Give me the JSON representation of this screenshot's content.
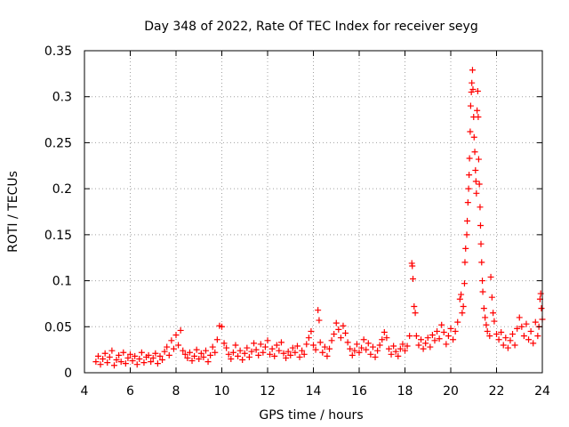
{
  "chart_data": {
    "type": "scatter",
    "title": "Day 348 of 2022, Rate Of TEC Index for receiver seyg",
    "xlabel": "GPS time / hours",
    "ylabel": "ROTI / TECUs",
    "xlim": [
      4,
      24
    ],
    "ylim": [
      0,
      0.35
    ],
    "x_ticks": [
      4,
      6,
      8,
      10,
      12,
      14,
      16,
      18,
      20,
      22,
      24
    ],
    "y_ticks": [
      0,
      0.05,
      0.1,
      0.15,
      0.2,
      0.25,
      0.3,
      0.35
    ],
    "x_tick_labels": [
      "4",
      "6",
      "8",
      "10",
      "12",
      "14",
      "16",
      "18",
      "20",
      "22",
      "24"
    ],
    "y_tick_labels": [
      "0",
      "0.05",
      "0.1",
      "0.15",
      "0.2",
      "0.25",
      "0.3",
      "0.35"
    ],
    "grid": true,
    "marker": "+",
    "color": "#ff0000",
    "series": [
      {
        "name": "ROTI",
        "points": [
          [
            4.5,
            0.012
          ],
          [
            4.6,
            0.018
          ],
          [
            4.7,
            0.009
          ],
          [
            4.8,
            0.015
          ],
          [
            4.9,
            0.021
          ],
          [
            5.0,
            0.011
          ],
          [
            5.1,
            0.017
          ],
          [
            5.2,
            0.024
          ],
          [
            5.3,
            0.008
          ],
          [
            5.4,
            0.014
          ],
          [
            5.5,
            0.019
          ],
          [
            5.6,
            0.012
          ],
          [
            5.7,
            0.022
          ],
          [
            5.8,
            0.01
          ],
          [
            5.9,
            0.016
          ],
          [
            6.0,
            0.02
          ],
          [
            6.1,
            0.013
          ],
          [
            6.2,
            0.018
          ],
          [
            6.3,
            0.009
          ],
          [
            6.4,
            0.015
          ],
          [
            6.5,
            0.022
          ],
          [
            6.6,
            0.011
          ],
          [
            6.7,
            0.017
          ],
          [
            6.8,
            0.019
          ],
          [
            6.9,
            0.012
          ],
          [
            7.0,
            0.016
          ],
          [
            7.1,
            0.021
          ],
          [
            7.2,
            0.01
          ],
          [
            7.3,
            0.018
          ],
          [
            7.4,
            0.014
          ],
          [
            7.5,
            0.023
          ],
          [
            7.6,
            0.028
          ],
          [
            7.7,
            0.019
          ],
          [
            7.8,
            0.035
          ],
          [
            7.9,
            0.026
          ],
          [
            8.0,
            0.041
          ],
          [
            8.1,
            0.03
          ],
          [
            8.2,
            0.046
          ],
          [
            8.3,
            0.024
          ],
          [
            8.4,
            0.02
          ],
          [
            8.5,
            0.016
          ],
          [
            8.6,
            0.022
          ],
          [
            8.7,
            0.013
          ],
          [
            8.8,
            0.018
          ],
          [
            8.9,
            0.025
          ],
          [
            9.0,
            0.015
          ],
          [
            9.1,
            0.021
          ],
          [
            9.2,
            0.017
          ],
          [
            9.3,
            0.024
          ],
          [
            9.4,
            0.012
          ],
          [
            9.5,
            0.019
          ],
          [
            9.6,
            0.028
          ],
          [
            9.7,
            0.022
          ],
          [
            9.8,
            0.036
          ],
          [
            9.9,
            0.051
          ],
          [
            10.0,
            0.05
          ],
          [
            10.1,
            0.032
          ],
          [
            10.2,
            0.027
          ],
          [
            10.3,
            0.02
          ],
          [
            10.4,
            0.015
          ],
          [
            10.5,
            0.022
          ],
          [
            10.6,
            0.03
          ],
          [
            10.7,
            0.018
          ],
          [
            10.8,
            0.024
          ],
          [
            10.9,
            0.014
          ],
          [
            11.0,
            0.021
          ],
          [
            11.1,
            0.027
          ],
          [
            11.2,
            0.017
          ],
          [
            11.3,
            0.023
          ],
          [
            11.4,
            0.032
          ],
          [
            11.5,
            0.025
          ],
          [
            11.6,
            0.019
          ],
          [
            11.7,
            0.031
          ],
          [
            11.8,
            0.022
          ],
          [
            11.9,
            0.028
          ],
          [
            12.0,
            0.035
          ],
          [
            12.1,
            0.02
          ],
          [
            12.2,
            0.026
          ],
          [
            12.3,
            0.018
          ],
          [
            12.4,
            0.03
          ],
          [
            12.5,
            0.024
          ],
          [
            12.6,
            0.033
          ],
          [
            12.7,
            0.021
          ],
          [
            12.8,
            0.016
          ],
          [
            12.9,
            0.023
          ],
          [
            13.0,
            0.019
          ],
          [
            13.1,
            0.027
          ],
          [
            13.2,
            0.022
          ],
          [
            13.3,
            0.029
          ],
          [
            13.4,
            0.017
          ],
          [
            13.5,
            0.024
          ],
          [
            13.6,
            0.02
          ],
          [
            13.7,
            0.031
          ],
          [
            13.8,
            0.038
          ],
          [
            13.9,
            0.045
          ],
          [
            14.0,
            0.03
          ],
          [
            14.1,
            0.025
          ],
          [
            14.2,
            0.068
          ],
          [
            14.25,
            0.057
          ],
          [
            14.3,
            0.033
          ],
          [
            14.4,
            0.022
          ],
          [
            14.5,
            0.028
          ],
          [
            14.6,
            0.018
          ],
          [
            14.7,
            0.026
          ],
          [
            14.8,
            0.035
          ],
          [
            14.9,
            0.042
          ],
          [
            15.0,
            0.054
          ],
          [
            15.1,
            0.047
          ],
          [
            15.2,
            0.038
          ],
          [
            15.3,
            0.051
          ],
          [
            15.4,
            0.043
          ],
          [
            15.5,
            0.033
          ],
          [
            15.6,
            0.026
          ],
          [
            15.7,
            0.019
          ],
          [
            15.8,
            0.024
          ],
          [
            15.9,
            0.031
          ],
          [
            16.0,
            0.022
          ],
          [
            16.1,
            0.027
          ],
          [
            16.2,
            0.036
          ],
          [
            16.3,
            0.025
          ],
          [
            16.4,
            0.032
          ],
          [
            16.5,
            0.02
          ],
          [
            16.6,
            0.028
          ],
          [
            16.7,
            0.017
          ],
          [
            16.8,
            0.024
          ],
          [
            16.9,
            0.03
          ],
          [
            17.0,
            0.036
          ],
          [
            17.1,
            0.044
          ],
          [
            17.2,
            0.038
          ],
          [
            17.3,
            0.026
          ],
          [
            17.4,
            0.02
          ],
          [
            17.5,
            0.029
          ],
          [
            17.6,
            0.023
          ],
          [
            17.7,
            0.018
          ],
          [
            17.8,
            0.026
          ],
          [
            17.9,
            0.031
          ],
          [
            18.0,
            0.024
          ],
          [
            18.1,
            0.029
          ],
          [
            18.2,
            0.04
          ],
          [
            18.3,
            0.119
          ],
          [
            18.32,
            0.116
          ],
          [
            18.35,
            0.102
          ],
          [
            18.4,
            0.072
          ],
          [
            18.45,
            0.065
          ],
          [
            18.5,
            0.04
          ],
          [
            18.6,
            0.03
          ],
          [
            18.7,
            0.036
          ],
          [
            18.8,
            0.026
          ],
          [
            18.9,
            0.032
          ],
          [
            19.0,
            0.038
          ],
          [
            19.1,
            0.028
          ],
          [
            19.2,
            0.041
          ],
          [
            19.3,
            0.035
          ],
          [
            19.4,
            0.045
          ],
          [
            19.5,
            0.037
          ],
          [
            19.6,
            0.052
          ],
          [
            19.7,
            0.044
          ],
          [
            19.8,
            0.031
          ],
          [
            19.9,
            0.04
          ],
          [
            20.0,
            0.048
          ],
          [
            20.1,
            0.036
          ],
          [
            20.2,
            0.045
          ],
          [
            20.3,
            0.055
          ],
          [
            20.4,
            0.08
          ],
          [
            20.45,
            0.085
          ],
          [
            20.5,
            0.065
          ],
          [
            20.55,
            0.072
          ],
          [
            20.6,
            0.097
          ],
          [
            20.62,
            0.12
          ],
          [
            20.65,
            0.135
          ],
          [
            20.7,
            0.15
          ],
          [
            20.72,
            0.165
          ],
          [
            20.75,
            0.185
          ],
          [
            20.78,
            0.2
          ],
          [
            20.8,
            0.215
          ],
          [
            20.82,
            0.233
          ],
          [
            20.85,
            0.262
          ],
          [
            20.87,
            0.29
          ],
          [
            20.9,
            0.305
          ],
          [
            20.92,
            0.315
          ],
          [
            20.95,
            0.329
          ],
          [
            20.97,
            0.308
          ],
          [
            21.0,
            0.278
          ],
          [
            21.02,
            0.256
          ],
          [
            21.05,
            0.24
          ],
          [
            21.08,
            0.22
          ],
          [
            21.1,
            0.208
          ],
          [
            21.12,
            0.195
          ],
          [
            21.15,
            0.285
          ],
          [
            21.18,
            0.306
          ],
          [
            21.2,
            0.278
          ],
          [
            21.22,
            0.232
          ],
          [
            21.25,
            0.205
          ],
          [
            21.28,
            0.18
          ],
          [
            21.3,
            0.16
          ],
          [
            21.32,
            0.14
          ],
          [
            21.35,
            0.12
          ],
          [
            21.38,
            0.1
          ],
          [
            21.4,
            0.088
          ],
          [
            21.45,
            0.07
          ],
          [
            21.5,
            0.06
          ],
          [
            21.55,
            0.052
          ],
          [
            21.6,
            0.045
          ],
          [
            21.7,
            0.04
          ],
          [
            21.75,
            0.104
          ],
          [
            21.8,
            0.082
          ],
          [
            21.85,
            0.065
          ],
          [
            21.9,
            0.056
          ],
          [
            22.0,
            0.042
          ],
          [
            22.1,
            0.036
          ],
          [
            22.2,
            0.044
          ],
          [
            22.3,
            0.03
          ],
          [
            22.4,
            0.038
          ],
          [
            22.5,
            0.027
          ],
          [
            22.6,
            0.035
          ],
          [
            22.7,
            0.042
          ],
          [
            22.8,
            0.03
          ],
          [
            22.9,
            0.048
          ],
          [
            23.0,
            0.06
          ],
          [
            23.1,
            0.05
          ],
          [
            23.2,
            0.04
          ],
          [
            23.3,
            0.053
          ],
          [
            23.4,
            0.036
          ],
          [
            23.5,
            0.045
          ],
          [
            23.6,
            0.032
          ],
          [
            23.7,
            0.055
          ],
          [
            23.8,
            0.04
          ],
          [
            23.85,
            0.05
          ],
          [
            23.9,
            0.08
          ],
          [
            23.93,
            0.086
          ],
          [
            23.96,
            0.07
          ],
          [
            24.0,
            0.058
          ]
        ]
      }
    ]
  }
}
